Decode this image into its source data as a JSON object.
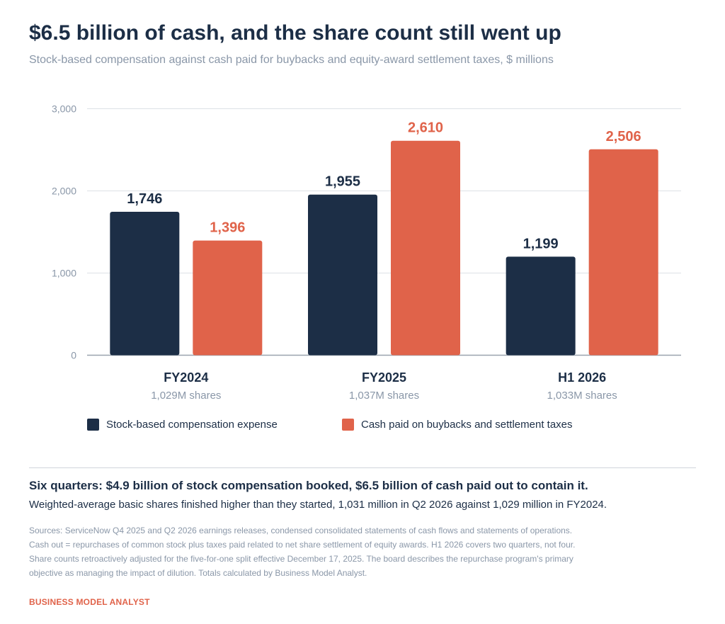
{
  "header": {
    "title": "$6.5 billion of cash, and the share count still went up",
    "subtitle": "Stock-based compensation against cash paid for buybacks and equity-award settlement taxes, $ millions"
  },
  "colors": {
    "sbc": "#1c2e46",
    "cash": "#e0634a",
    "grid": "#dde1e6",
    "axis": "#9aa3ae",
    "muted": "#8a97a8"
  },
  "chart_data": {
    "type": "bar",
    "categories": [
      "FY2024",
      "FY2025",
      "H1 2026"
    ],
    "category_sublabels": [
      "1,029M shares",
      "1,037M shares",
      "1,033M shares"
    ],
    "series": [
      {
        "name": "Stock-based compensation expense",
        "values": [
          1746,
          1955,
          1199
        ],
        "labels": [
          "1,746",
          "1,955",
          "1,199"
        ],
        "color": "#1c2e46"
      },
      {
        "name": "Cash paid on buybacks and settlement taxes",
        "values": [
          1396,
          2610,
          2506
        ],
        "labels": [
          "1,396",
          "2,610",
          "2,506"
        ],
        "color": "#e0634a"
      }
    ],
    "ylim": [
      0,
      3000
    ],
    "yticks": [
      0,
      1000,
      2000,
      3000
    ],
    "ytick_labels": [
      "0",
      "1,000",
      "2,000",
      "3,000"
    ],
    "grid": true,
    "legend_position": "bottom"
  },
  "legend": {
    "sbc_label": "Stock-based compensation expense",
    "cash_label": "Cash paid on buybacks and settlement taxes"
  },
  "summary": {
    "headline": "Six quarters: $4.9 billion of stock compensation booked, $6.5 billion of cash paid out to contain it.",
    "lede": "Weighted-average basic shares finished higher than they started, 1,031 million in Q2 2026 against 1,029 million in FY2024."
  },
  "sources": [
    "Sources: ServiceNow Q4 2025 and Q2 2026 earnings releases, condensed consolidated statements of cash flows and statements of operations.",
    "Cash out = repurchases of common stock plus taxes paid related to net share settlement of equity awards. H1 2026 covers two quarters, not four.",
    "Share counts retroactively adjusted for the five-for-one split effective December 17, 2025. The board describes the repurchase program's primary",
    "objective as managing the impact of dilution. Totals calculated by Business Model Analyst."
  ],
  "brand": "BUSINESS MODEL ANALYST"
}
